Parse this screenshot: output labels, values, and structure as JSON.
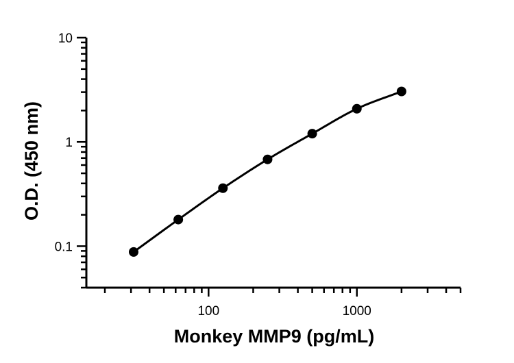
{
  "chart_data": {
    "type": "scatter",
    "title": "",
    "xlabel": "Monkey MMP9 (pg/mL)",
    "ylabel": "O.D. (450 nm)",
    "xscale": "log",
    "yscale": "log",
    "xlim": [
      15,
      5000
    ],
    "ylim": [
      0.04,
      10
    ],
    "xticks": [
      {
        "value": 100,
        "label": "100"
      },
      {
        "value": 1000,
        "label": "1000"
      }
    ],
    "yticks": [
      {
        "value": 0.1,
        "label": "0.1"
      },
      {
        "value": 1,
        "label": "1"
      },
      {
        "value": 10,
        "label": "10"
      }
    ],
    "grid": false,
    "legend": "none",
    "fit_curve": true,
    "series": [
      {
        "color": "#000000",
        "x": [
          31.25,
          62.5,
          125,
          250,
          500,
          1000,
          2000
        ],
        "y": [
          0.088,
          0.18,
          0.36,
          0.68,
          1.2,
          2.08,
          3.05
        ]
      }
    ]
  }
}
